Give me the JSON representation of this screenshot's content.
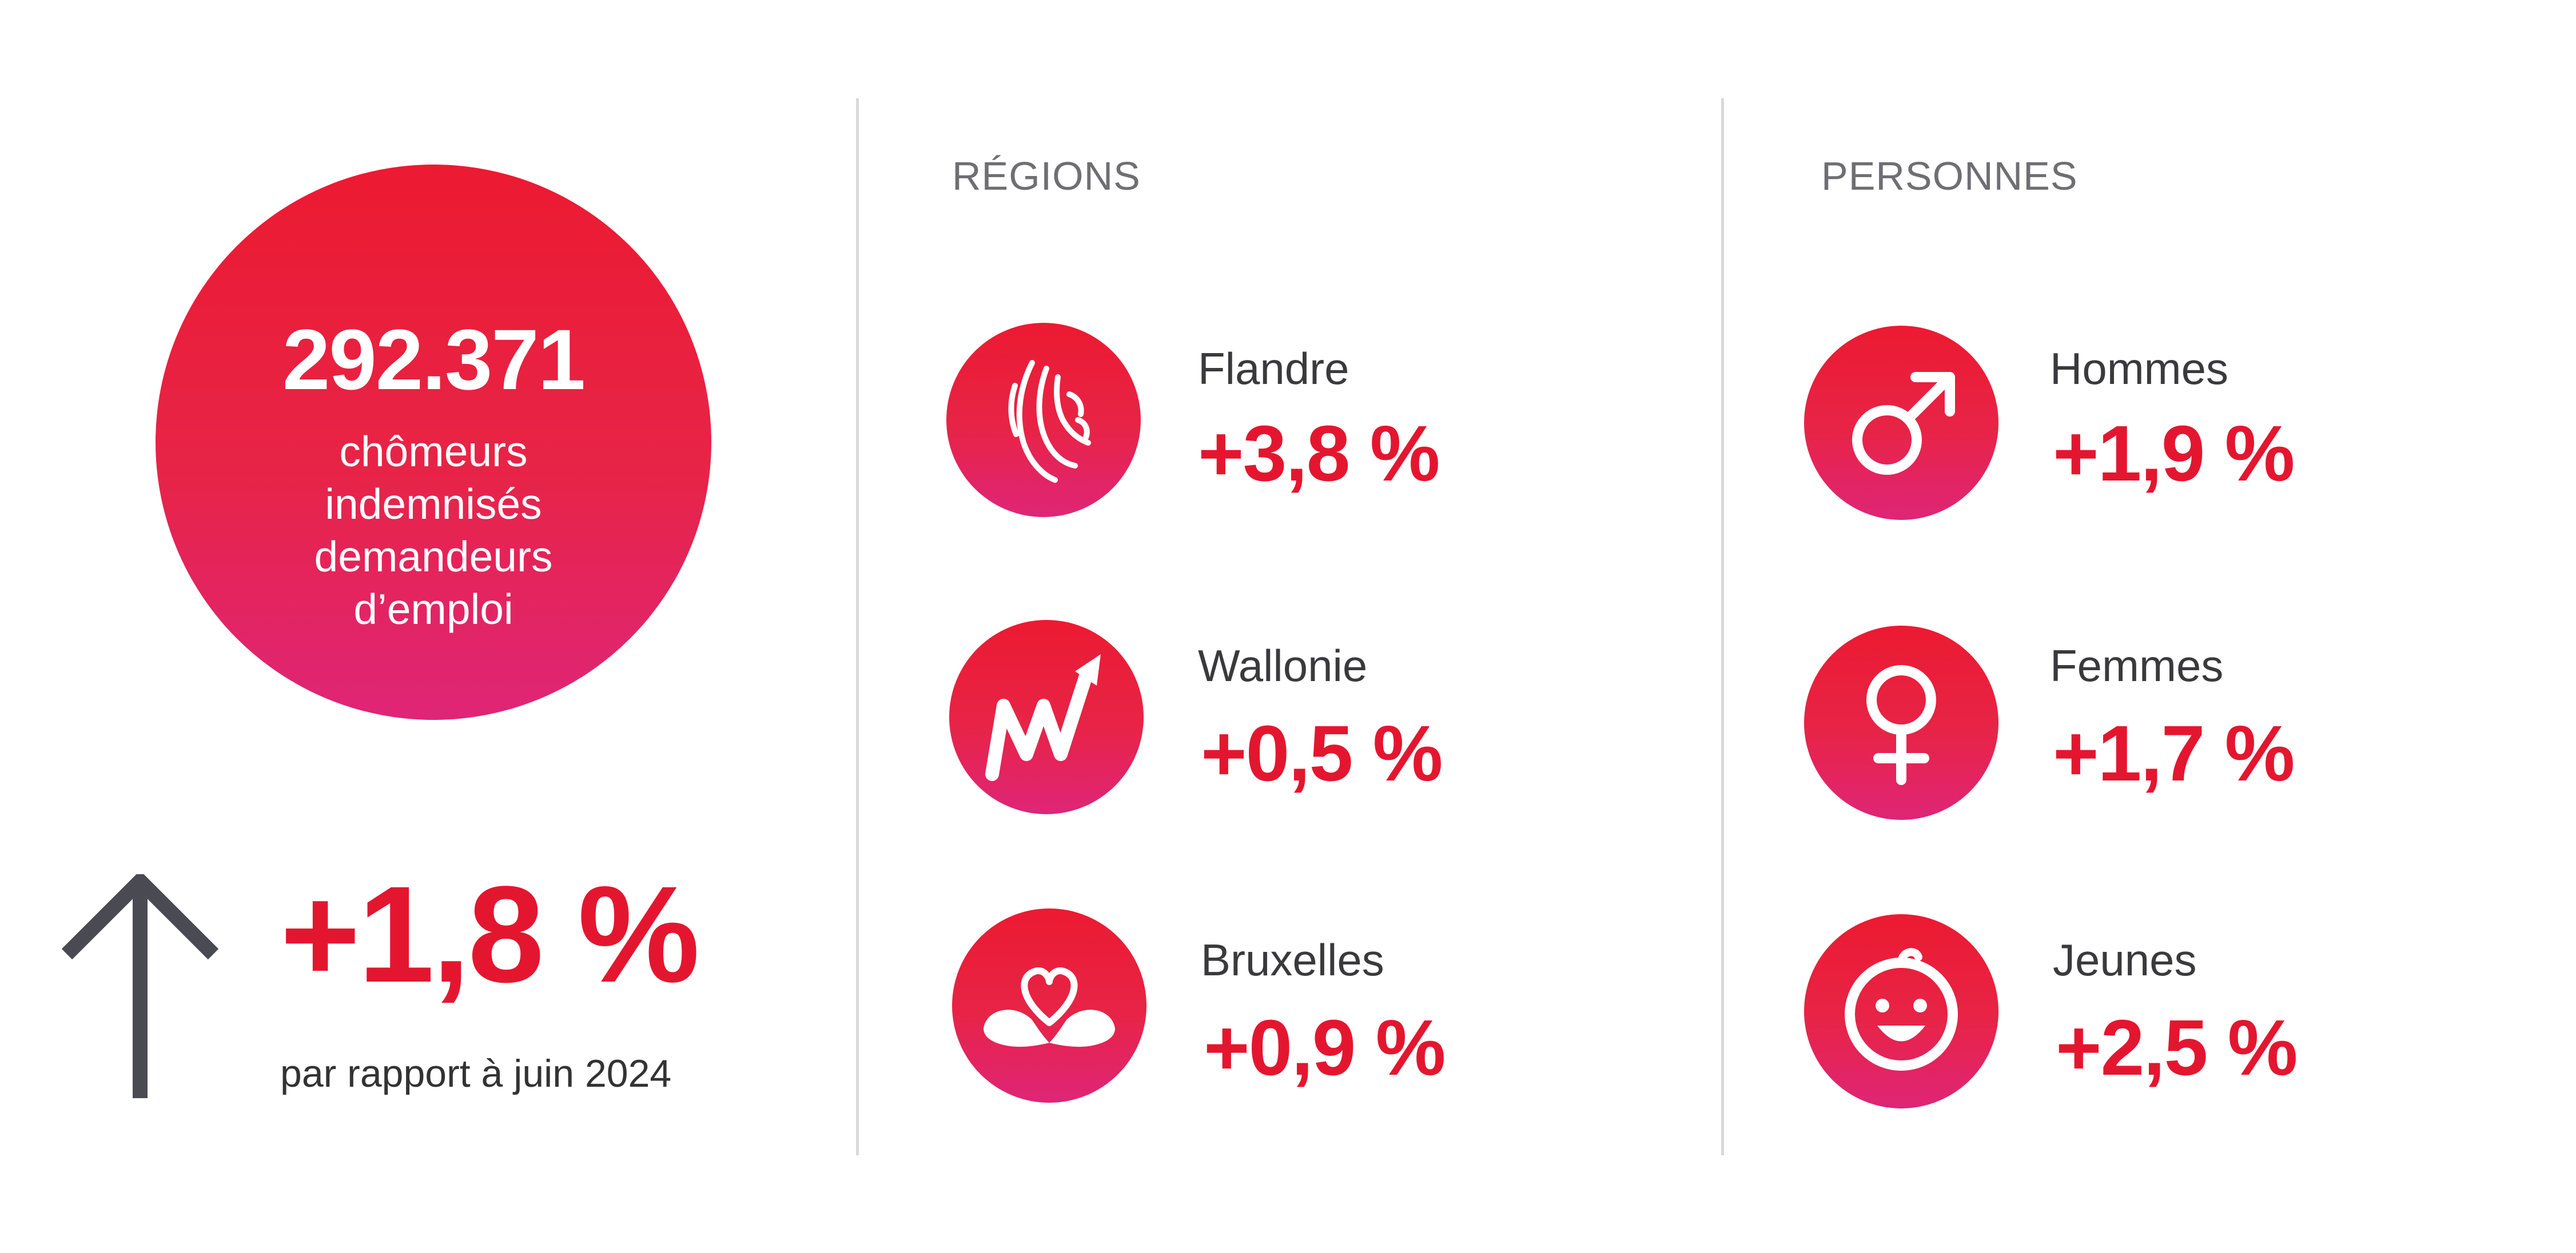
{
  "hero": {
    "number": "292.371",
    "description_lines": [
      "chômeurs",
      "indemnisés",
      "demandeurs",
      "d’emploi"
    ]
  },
  "trend": {
    "value": "+1,8 %",
    "caption": "par rapport à juin 2024",
    "icon": "arrow-up-icon"
  },
  "regions": {
    "title": "RÉGIONS",
    "items": [
      {
        "label": "Flandre",
        "value": "+3,8 %",
        "icon": "flemish-lion-icon"
      },
      {
        "label": "Wallonie",
        "value": "+0,5 %",
        "icon": "wallonia-w-icon"
      },
      {
        "label": "Bruxelles",
        "value": "+0,9 %",
        "icon": "brussels-heart-icon"
      }
    ]
  },
  "persons": {
    "title": "PERSONNES",
    "items": [
      {
        "label": "Hommes",
        "value": "+1,9 %",
        "icon": "male-symbol-icon"
      },
      {
        "label": "Femmes",
        "value": "+1,7 %",
        "icon": "female-symbol-icon"
      },
      {
        "label": "Jeunes",
        "value": "+2,5 %",
        "icon": "baby-face-icon"
      }
    ]
  },
  "colors": {
    "accent": "#e4162f",
    "gradient_top": "#ec1a31",
    "gradient_bottom": "#df2577",
    "title_gray": "#6e6e73",
    "text_dark": "#3a3a3c",
    "divider": "#d9d9d9"
  }
}
